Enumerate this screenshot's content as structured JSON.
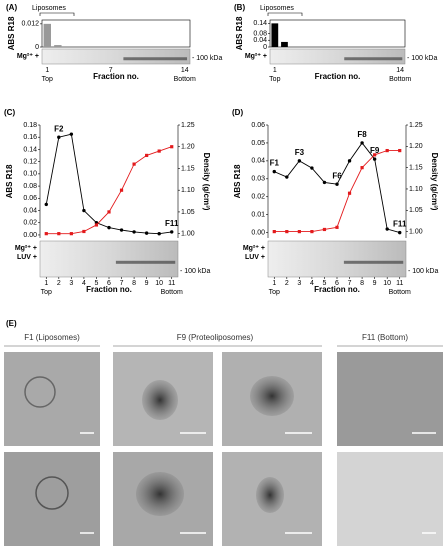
{
  "chart_data": [
    {
      "type": "bar",
      "panel_label": "(A)",
      "annotation": "Liposomes",
      "ylabel": "ABS R18",
      "xlabel": "Fraction no.",
      "x_start_label": "Top",
      "x_end_label": "Bottom",
      "categories": [
        "1",
        null,
        null,
        null,
        null,
        null,
        "7",
        null,
        null,
        null,
        null,
        null,
        null,
        "14"
      ],
      "values": [
        0.012,
        0.001,
        null,
        null,
        null,
        null,
        null,
        null,
        null,
        null,
        null,
        null,
        null,
        null
      ],
      "color": "#999999",
      "ylim": [
        0,
        0.014
      ],
      "yticks": [
        0,
        0.012
      ],
      "gel": {
        "lane_labels": [
          "Mg²⁺ +"
        ],
        "marker": "- 100 kDa"
      }
    },
    {
      "type": "bar",
      "panel_label": "(B)",
      "annotation": "Liposomes",
      "ylabel": "ABS R18",
      "xlabel": "Fraction no.",
      "x_start_label": "Top",
      "x_end_label": "Bottom",
      "categories": [
        "1",
        null,
        null,
        null,
        null,
        null,
        null,
        null,
        null,
        null,
        null,
        null,
        null,
        "14"
      ],
      "values": [
        0.14,
        0.03,
        null,
        null,
        null,
        null,
        null,
        null,
        null,
        null,
        null,
        null,
        null,
        null
      ],
      "color": "#000000",
      "ylim": [
        0,
        0.16
      ],
      "yticks": [
        0,
        0.04,
        0.08,
        0.14
      ],
      "gel": {
        "lane_labels": [
          "Mg²⁺ +"
        ],
        "marker": "- 100 kDa"
      }
    },
    {
      "type": "line",
      "panel_label": "(C)",
      "ylabel": "ABS R18",
      "y2label": "Density (g/cm³)",
      "xlabel": "Fraction no.",
      "x_start_label": "Top",
      "x_end_label": "Bottom",
      "x": [
        1,
        2,
        3,
        4,
        5,
        6,
        7,
        8,
        9,
        10,
        11
      ],
      "xlim": [
        0.5,
        11.5
      ],
      "xticks": [
        1,
        2,
        3,
        4,
        5,
        6,
        7,
        8,
        9,
        10,
        11
      ],
      "series": [
        {
          "color": "#000000",
          "values": [
            0.05,
            0.16,
            0.165,
            0.04,
            0.02,
            0.012,
            0.008,
            0.005,
            0.003,
            0.002,
            0.005
          ]
        },
        {
          "color": "#e31a1c",
          "axis": "y2",
          "values": [
            1.0,
            1.0,
            1.0,
            1.005,
            1.02,
            1.05,
            1.1,
            1.16,
            1.18,
            1.19,
            1.2
          ]
        }
      ],
      "point_labels": [
        null,
        "F2",
        null,
        null,
        null,
        null,
        null,
        null,
        null,
        null,
        "F11"
      ],
      "ylim": [
        -0.005,
        0.18
      ],
      "yticks": [
        {
          "value": 0,
          "label": "0.00"
        },
        0.02,
        0.04,
        0.06,
        0.08,
        {
          "value": 0.1,
          "label": "0.10"
        },
        0.12,
        0.14,
        0.16,
        0.18
      ],
      "y2lim": [
        0.99,
        1.25
      ],
      "y2ticks": [
        {
          "value": 1,
          "label": "1.00"
        },
        1.05,
        {
          "value": 1.1,
          "label": "1.10"
        },
        1.15,
        {
          "value": 1.2,
          "label": "1.20"
        },
        1.25
      ],
      "gel": {
        "lane_labels": [
          "Mg²⁺ +",
          "LUV +"
        ],
        "marker": "- 100 kDa"
      }
    },
    {
      "type": "line",
      "panel_label": "(D)",
      "ylabel": "ABS R18",
      "y2label": "Density (g/cm³)",
      "xlabel": "Fraction no.",
      "x_start_label": "Top",
      "x_end_label": "Bottom",
      "x": [
        1,
        2,
        3,
        4,
        5,
        6,
        7,
        8,
        9,
        10,
        11
      ],
      "xlim": [
        0.5,
        11.5
      ],
      "xticks": [
        1,
        2,
        3,
        4,
        5,
        6,
        7,
        8,
        9,
        10,
        11
      ],
      "series": [
        {
          "color": "#000000",
          "values": [
            0.034,
            0.031,
            0.04,
            0.036,
            0.028,
            0.027,
            0.04,
            0.05,
            0.041,
            0.002,
            0.0
          ]
        },
        {
          "color": "#e31a1c",
          "axis": "y2",
          "values": [
            1.0,
            1.0,
            1.0,
            1.0,
            1.005,
            1.01,
            1.09,
            1.15,
            1.18,
            1.19,
            1.19
          ]
        }
      ],
      "point_labels": [
        "F1",
        null,
        "F3",
        null,
        null,
        "F6",
        null,
        "F8",
        "F9",
        null,
        "F11"
      ],
      "ylim": [
        -0.003,
        0.06
      ],
      "yticks": [
        {
          "value": 0,
          "label": "0.00"
        },
        0.01,
        0.02,
        0.03,
        0.04,
        0.05,
        0.06
      ],
      "y2lim": [
        0.985,
        1.25
      ],
      "y2ticks": [
        {
          "value": 1,
          "label": "1.00"
        },
        1.05,
        {
          "value": 1.1,
          "label": "1.10"
        },
        1.15,
        {
          "value": 1.2,
          "label": "1.20"
        },
        1.25
      ],
      "gel": {
        "lane_labels": [
          "Mg²⁺ +",
          "LUV +"
        ],
        "marker": "- 100 kDa"
      }
    }
  ],
  "tem": {
    "panel_label": "(E)",
    "columns": [
      "F1 (Liposomes)",
      "F9 (Proteoliposomes)",
      "F11 (Bottom)"
    ]
  }
}
